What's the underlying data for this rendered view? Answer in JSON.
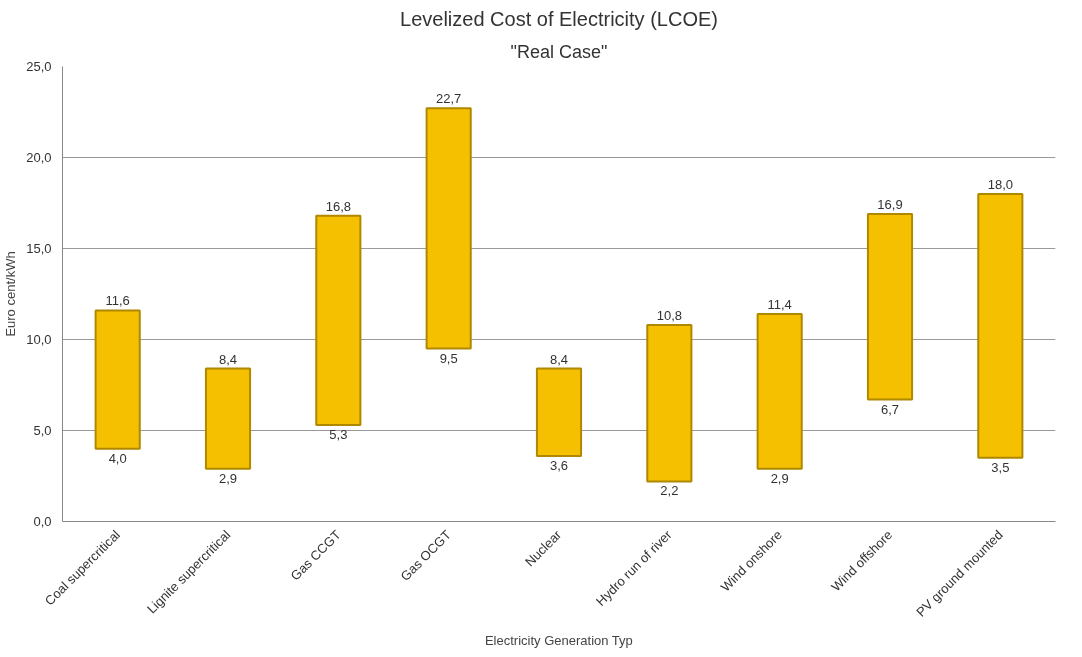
{
  "chart_data": {
    "type": "bar",
    "title": "Levelized Cost of Electricity (LCOE)",
    "subtitle": "\"Real Case\"",
    "xlabel": "Electricity Generation Typ",
    "ylabel": "Euro cent/kWh",
    "categories": [
      "Coal supercritical",
      "Lignite supercritical",
      "Gas CCGT",
      "Gas OCGT",
      "Nuclear",
      "Hydro run of river",
      "Wind onshore",
      "Wind offshore",
      "PV ground mounted"
    ],
    "base": [
      4.0,
      2.9,
      5.3,
      9.5,
      3.6,
      2.2,
      2.9,
      6.7,
      3.5
    ],
    "values": [
      7.6,
      5.5,
      11.5,
      13.2,
      4.8,
      8.6,
      8.5,
      10.2,
      14.5
    ],
    "color": "#f5c000",
    "ylim": [
      0,
      25
    ],
    "yticks": [
      {
        "value": 0,
        "label": "0,0"
      },
      {
        "value": 5,
        "label": "5,0"
      },
      {
        "value": 10,
        "label": "10,0"
      },
      {
        "value": 15,
        "label": "15,0"
      },
      {
        "value": 20,
        "label": "20,0"
      },
      {
        "value": 25,
        "label": "25,0"
      }
    ],
    "grid": "y",
    "annotations": [
      {
        "text": "11,6",
        "x": "Coal supercritical",
        "y": 11.6
      },
      {
        "text": "4,0",
        "x": "Coal supercritical",
        "y": 4.0
      },
      {
        "text": "8,4",
        "x": "Lignite supercritical",
        "y": 8.4
      },
      {
        "text": "2,9",
        "x": "Lignite supercritical",
        "y": 2.9
      },
      {
        "text": "16,8",
        "x": "Gas CCGT",
        "y": 16.8
      },
      {
        "text": "5,3",
        "x": "Gas CCGT",
        "y": 5.3
      },
      {
        "text": "22,7",
        "x": "Gas OCGT",
        "y": 22.7
      },
      {
        "text": "9,5",
        "x": "Gas OCGT",
        "y": 9.5
      },
      {
        "text": "8,4",
        "x": "Nuclear",
        "y": 8.4
      },
      {
        "text": "3,6",
        "x": "Nuclear",
        "y": 3.6
      },
      {
        "text": "10,8",
        "x": "Hydro run of river",
        "y": 10.8
      },
      {
        "text": "2,2",
        "x": "Hydro run of river",
        "y": 2.2
      },
      {
        "text": "11,4",
        "x": "Wind onshore",
        "y": 11.4
      },
      {
        "text": "2,9",
        "x": "Wind onshore",
        "y": 2.9
      },
      {
        "text": "16,9",
        "x": "Wind offshore",
        "y": 16.9
      },
      {
        "text": "6,7",
        "x": "Wind offshore",
        "y": 6.7
      },
      {
        "text": "18,0",
        "x": "PV ground mounted",
        "y": 18.0
      },
      {
        "text": "3,5",
        "x": "PV ground mounted",
        "y": 3.5
      }
    ]
  }
}
